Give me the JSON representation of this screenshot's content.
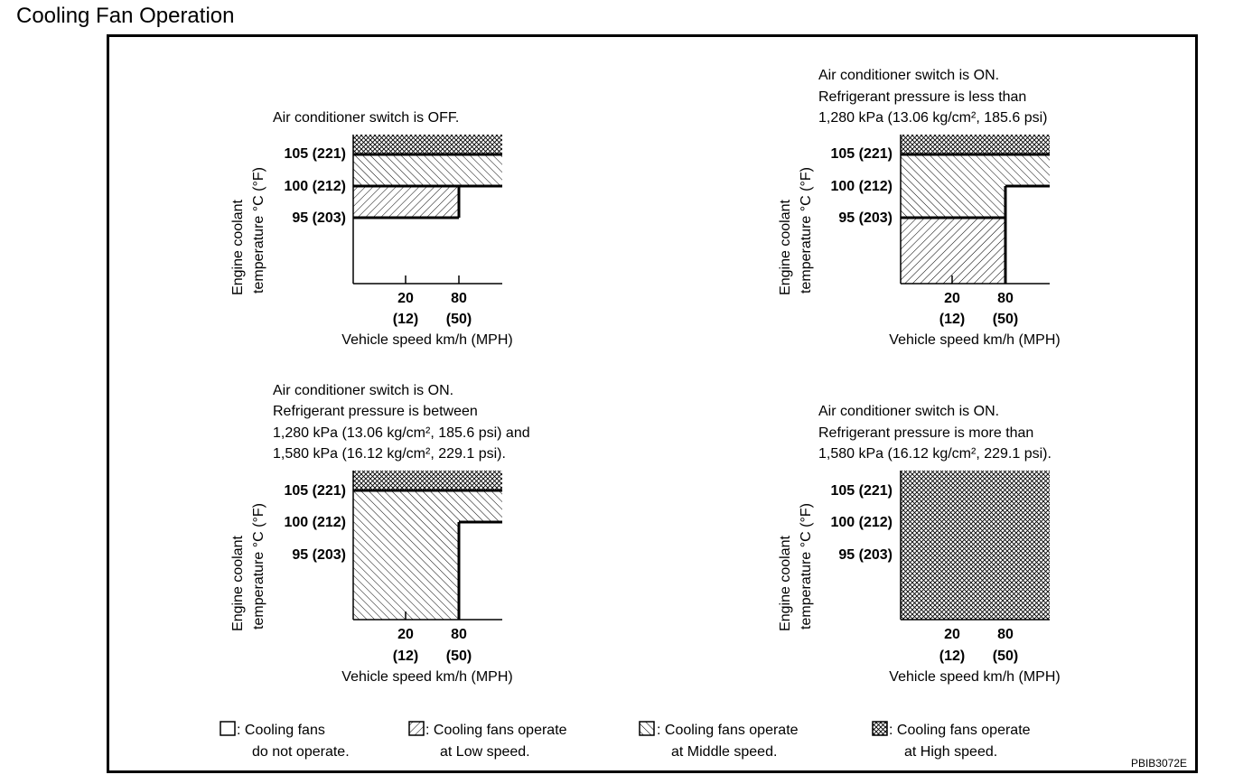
{
  "page": {
    "title": "Cooling Fan Operation",
    "figure_code": "PBIB3072E"
  },
  "axes": {
    "y_label_line1": "Engine coolant",
    "y_label_line2": "temperature °C (°F)",
    "x_label": "Vehicle speed km/h (MPH)",
    "y_ticks": [
      "105 (221)",
      "100 (212)",
      "95 (203)"
    ],
    "x_ticks_kmh": [
      "20",
      "80"
    ],
    "x_ticks_mph": [
      "(12)",
      "(50)"
    ]
  },
  "panels": [
    {
      "caption_lines": [
        "Air conditioner switch is OFF."
      ],
      "zones": "off"
    },
    {
      "caption_lines": [
        "Air conditioner switch is ON.",
        "Refrigerant pressure is less than",
        "1,280 kPa (13.06 kg/cm², 185.6 psi)"
      ],
      "zones": "low_pressure"
    },
    {
      "caption_lines": [
        "Air conditioner switch is ON.",
        "Refrigerant pressure is between",
        "1,280 kPa (13.06 kg/cm², 185.6 psi) and",
        "1,580 kPa (16.12 kg/cm², 229.1 psi)."
      ],
      "zones": "mid_pressure"
    },
    {
      "caption_lines": [
        "Air conditioner switch is ON.",
        "Refrigerant pressure is more than",
        "1,580 kPa (16.12 kg/cm², 229.1 psi)."
      ],
      "zones": "high_pressure"
    }
  ],
  "legend": [
    {
      "pattern": "none",
      "line1": ": Cooling fans",
      "line2": "do not operate."
    },
    {
      "pattern": "low",
      "line1": ": Cooling fans operate",
      "line2": "at Low speed."
    },
    {
      "pattern": "mid",
      "line1": ": Cooling fans operate",
      "line2": "at Middle speed."
    },
    {
      "pattern": "high",
      "line1": ": Cooling fans operate",
      "line2": "at High speed."
    }
  ]
}
